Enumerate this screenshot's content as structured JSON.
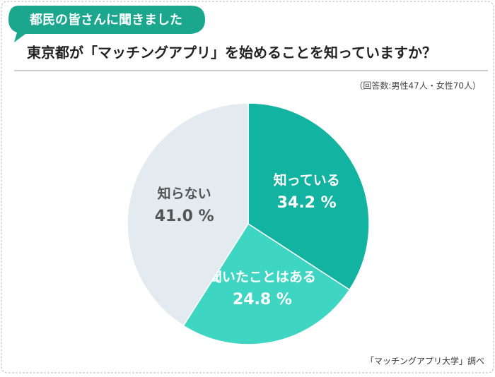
{
  "badge": "都民の皆さんに聞きました",
  "chart_data": {
    "type": "pie",
    "title": "東京都が「マッチングアプリ」を始めることを知っていますか？",
    "subtitle": "（回答数:男性47人・女性70人）",
    "source": "「マッチングアプリ大学」調べ",
    "categories": [
      "知っている",
      "聞いたことはある",
      "知らない"
    ],
    "values": [
      34.2,
      24.8,
      41.0
    ],
    "value_labels": [
      "34.2 %",
      "24.8 %",
      "41.0 %"
    ],
    "colors": [
      "#12b3a0",
      "#3fd5c3",
      "#e3ebf1"
    ],
    "label_colors": [
      "#ffffff",
      "#ffffff",
      "#555555"
    ]
  }
}
